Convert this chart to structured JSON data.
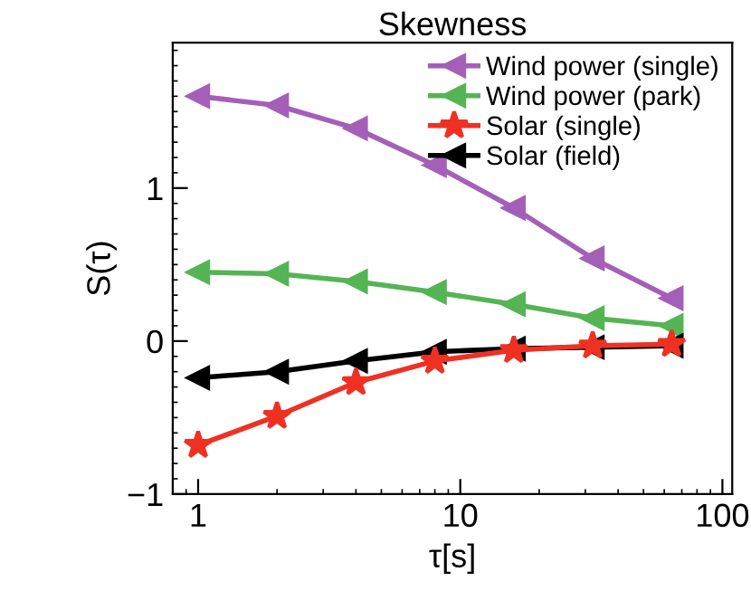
{
  "chart_data": {
    "type": "line",
    "title": "Skewness",
    "xlabel": "τ[s]",
    "ylabel": "S(τ)",
    "x": [
      1,
      2,
      4,
      8,
      16,
      32,
      64
    ],
    "series": [
      {
        "name": "Wind power (single)",
        "color": "#a45fb8",
        "marker": "triangle",
        "values": [
          1.6,
          1.54,
          1.39,
          1.15,
          0.87,
          0.54,
          0.28
        ]
      },
      {
        "name": "Wind power (park)",
        "color": "#55b454",
        "marker": "triangle",
        "values": [
          0.45,
          0.44,
          0.39,
          0.32,
          0.24,
          0.15,
          0.1
        ]
      },
      {
        "name": "Solar (single)",
        "color": "#ee3123",
        "marker": "star",
        "values": [
          -0.68,
          -0.49,
          -0.27,
          -0.13,
          -0.06,
          -0.03,
          -0.02
        ]
      },
      {
        "name": "Solar (field)",
        "color": "#000000",
        "marker": "triangle",
        "values": [
          -0.24,
          -0.2,
          -0.13,
          -0.07,
          -0.05,
          -0.04,
          -0.03
        ]
      }
    ],
    "log": "x",
    "xlim": [
      0.8,
      109
    ],
    "xticks": [
      1,
      10,
      100
    ],
    "ylim": [
      -1,
      1.95
    ],
    "yticks": [
      {
        "value": -1,
        "label": "−1"
      },
      0,
      1
    ],
    "grid": false,
    "legend": "top right",
    "line_style": "solid"
  }
}
